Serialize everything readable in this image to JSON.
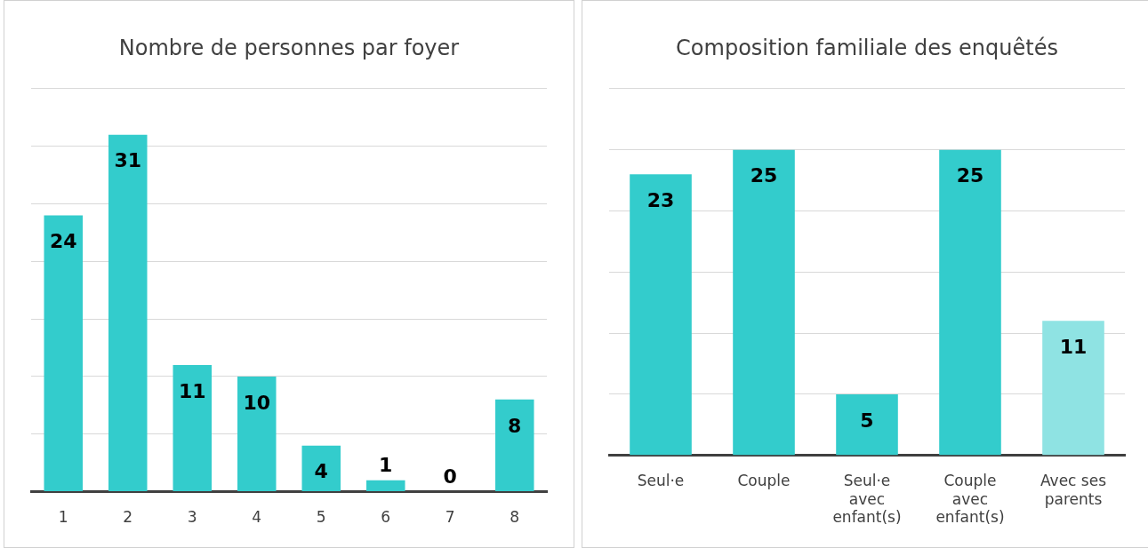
{
  "chart_data": [
    {
      "type": "bar",
      "title": "Nombre de personnes par foyer",
      "categories": [
        "1",
        "2",
        "3",
        "4",
        "5",
        "6",
        "7",
        "8"
      ],
      "values": [
        24,
        31,
        11,
        10,
        4,
        1,
        0,
        8
      ],
      "color": "#33cccc",
      "ylim": [
        0,
        35
      ],
      "yticks": [
        {
          "value": 0,
          "label": null
        },
        {
          "value": 5,
          "label": null
        },
        {
          "value": 10,
          "label": null
        },
        {
          "value": 15,
          "label": null
        },
        {
          "value": 20,
          "label": null
        },
        {
          "value": 25,
          "label": null
        },
        {
          "value": 30,
          "label": null
        },
        {
          "value": 35,
          "label": null
        }
      ],
      "grid": "y",
      "tick_labels": "x",
      "data_labels": true
    },
    {
      "type": "bar",
      "title": "Composition familiale des enquêtés",
      "categories": [
        "Seul·e",
        "Couple",
        "Seul·e avec enfant(s)",
        "Couple avec enfant(s)",
        "Avec ses parents"
      ],
      "values": [
        23,
        25,
        5,
        25,
        11
      ],
      "colors": [
        "#33cccc",
        "#33cccc",
        "#33cccc",
        "#33cccc",
        "#8fe3e3"
      ],
      "ylim": [
        0,
        30
      ],
      "yticks": [
        {
          "value": 0,
          "label": null
        },
        {
          "value": 5,
          "label": null
        },
        {
          "value": 10,
          "label": null
        },
        {
          "value": 15,
          "label": null
        },
        {
          "value": 20,
          "label": null
        },
        {
          "value": 25,
          "label": null
        },
        {
          "value": 30,
          "label": null
        }
      ],
      "grid": "y",
      "tick_labels": "x",
      "data_labels": true
    }
  ]
}
